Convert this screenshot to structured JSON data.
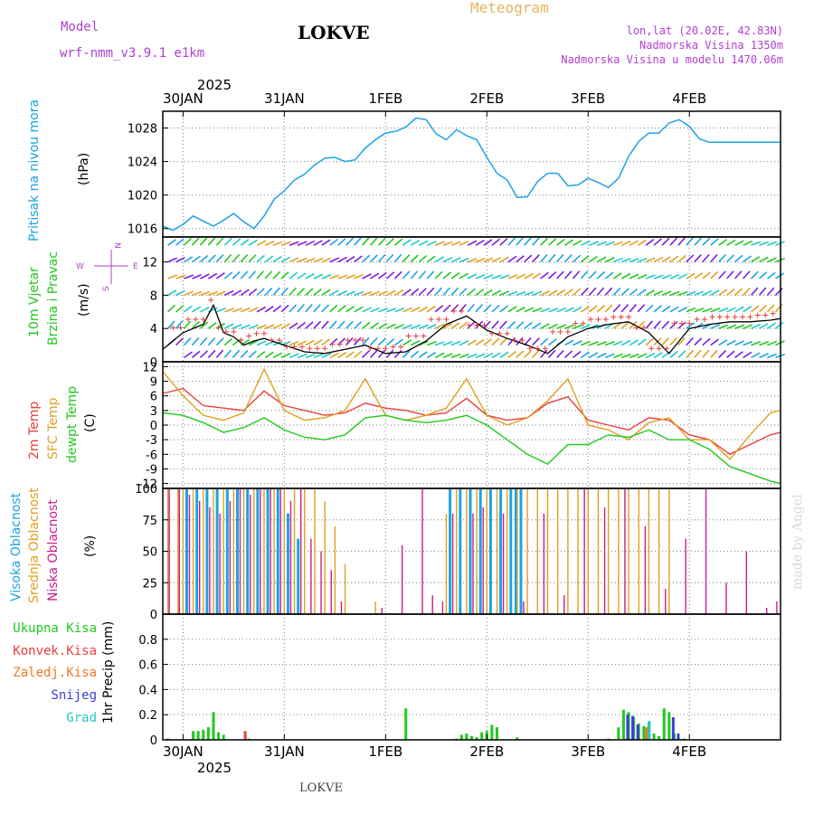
{
  "header": {
    "model_label": "Model",
    "model_name": "wrf-nmm_v3.9.1 e1km",
    "station": "LOKVE",
    "meteogram": "Meteogram",
    "lonlat": "lon,lat (20.02E, 42.83N)",
    "elevation": "Nadmorska Visina 1350m",
    "elevation_model": "Nadmorska Visina u modelu 1470.06m",
    "footer_station": "LOKVE",
    "watermark": "made by Angel",
    "year_top": "2025",
    "year_bottom": "2025"
  },
  "colors": {
    "pressure": "#1ba3e3",
    "temp2m": "#e8403c",
    "sfc": "#e0a020",
    "dewpt": "#22c81e",
    "low_cloud": "#c81e8c",
    "mid_cloud": "#e0a020",
    "high_cloud": "#1ba3e3",
    "total_precip": "#22c81e",
    "conv_precip": "#e8403c",
    "frz_precip": "#f07820",
    "snow": "#3c3cdc",
    "hail": "#20c8c8",
    "wind_legend": "#b040d0"
  },
  "dates": [
    "30JAN",
    "31JAN",
    "1FEB",
    "2FEB",
    "3FEB",
    "4FEB"
  ],
  "panels": {
    "pressure": {
      "label": "Pritisak na nivou mora",
      "unit": "(hPa)",
      "ticks": [
        "1016",
        "1020",
        "1024",
        "1028"
      ]
    },
    "wind": {
      "label1": "10m Vjetar",
      "label2": "Brzina i Pravac",
      "unit": "(m/s)",
      "ticks": [
        "0",
        "4",
        "8",
        "12"
      ],
      "compass": {
        "n": "N",
        "s": "S",
        "e": "E",
        "w": "W"
      }
    },
    "temp": {
      "label_2m": "2m Temp",
      "label_sfc": "SFC Temp",
      "label_dew": "dewpt Temp",
      "unit": "(C)",
      "ticks": [
        "-12",
        "-9",
        "-6",
        "-3",
        "0",
        "3",
        "6",
        "9",
        "12"
      ]
    },
    "cloud": {
      "label_high": "Visoka Oblacnost",
      "label_mid": "Srednja Oblacnost",
      "label_low": "Niska Oblacnost",
      "unit": "(%)",
      "ticks": [
        "0",
        "25",
        "50",
        "75",
        "100"
      ]
    },
    "precip": {
      "label_total": "Ukupna Kisa",
      "label_conv": "Konvek.Kisa",
      "label_frz": "Zaledj.Kisa",
      "label_snow": "Snijeg",
      "label_hail": "Grad",
      "unit": "1hr Precip (mm)",
      "ticks": [
        "0",
        "0.2",
        "0.4",
        "0.6",
        "0.8"
      ]
    }
  },
  "chart_data": [
    {
      "type": "line",
      "panel": "pressure",
      "x_range_hours": [
        -4,
        118
      ],
      "ylim": [
        1015,
        1030
      ],
      "ylabel": "(hPa)",
      "series": [
        {
          "name": "Pritisak na nivou mora",
          "color": "#1ba3e3",
          "x": [
            -4,
            -2,
            0,
            2,
            4,
            6,
            8,
            10,
            12,
            14,
            16,
            18,
            20,
            22,
            24,
            26,
            28,
            30,
            32,
            34,
            36,
            38,
            40,
            42,
            44,
            46,
            48,
            50,
            52,
            54,
            56,
            58,
            60,
            62,
            64,
            66,
            68,
            70,
            72,
            74,
            76,
            78,
            80,
            82,
            84,
            86,
            88,
            90,
            92,
            94,
            96,
            98,
            100,
            102,
            104,
            106,
            108,
            110,
            112,
            114,
            116,
            118
          ],
          "values": [
            1016.3,
            1015.8,
            1016.5,
            1017.5,
            1016.9,
            1016.3,
            1017.0,
            1017.8,
            1016.8,
            1016.0,
            1017.5,
            1019.5,
            1020.5,
            1021.8,
            1022.5,
            1023.6,
            1024.4,
            1024.5,
            1024.0,
            1024.2,
            1025.6,
            1026.6,
            1027.4,
            1027.6,
            1028.1,
            1029.2,
            1029.0,
            1027.3,
            1026.6,
            1027.8,
            1027.1,
            1026.6,
            1024.5,
            1022.6,
            1021.8,
            1019.7,
            1019.8,
            1021.6,
            1022.6,
            1022.6,
            1021.1,
            1021.2,
            1022.0,
            1021.5,
            1020.9,
            1022.0,
            1024.6,
            1026.4,
            1027.4,
            1027.4,
            1028.6,
            1029.0,
            1028.2,
            1026.7,
            1026.3,
            1026.3,
            1026.3,
            1026.3,
            1026.3,
            1026.3,
            1026.3,
            1026.3
          ]
        }
      ]
    },
    {
      "type": "line",
      "panel": "wind",
      "ylim": [
        0,
        15
      ],
      "ylabel": "(m/s)",
      "series": [
        {
          "name": "wind speed",
          "color": "#000000",
          "x": [
            -4,
            0,
            4,
            6,
            8,
            10,
            12,
            14,
            16,
            20,
            24,
            28,
            32,
            36,
            40,
            44,
            48,
            52,
            56,
            60,
            64,
            68,
            72,
            76,
            80,
            84,
            88,
            92,
            96,
            100,
            104,
            108,
            112,
            116,
            118
          ],
          "values": [
            1.5,
            3.5,
            4.5,
            6.8,
            3.5,
            3.0,
            2.0,
            2.5,
            2.8,
            2.0,
            1.2,
            1.0,
            1.5,
            2.0,
            1.0,
            1.2,
            2.5,
            4.5,
            5.5,
            3.8,
            2.8,
            2.0,
            1.0,
            3.0,
            4.0,
            4.5,
            4.8,
            3.5,
            1.0,
            4.0,
            4.5,
            4.8,
            4.8,
            5.0,
            5.2
          ]
        }
      ]
    },
    {
      "type": "line",
      "panel": "temp",
      "ylim": [
        -13,
        13
      ],
      "ylabel": "(C)",
      "series": [
        {
          "name": "2m Temp",
          "color": "#e8403c",
          "x": [
            -4,
            0,
            4,
            8,
            12,
            16,
            20,
            24,
            28,
            32,
            36,
            40,
            44,
            48,
            52,
            56,
            60,
            64,
            68,
            72,
            76,
            80,
            84,
            88,
            92,
            96,
            100,
            104,
            108,
            112,
            116,
            118
          ],
          "values": [
            6.5,
            7.5,
            4.0,
            3.5,
            3.0,
            7.0,
            4.0,
            3.0,
            2.0,
            2.5,
            4.5,
            3.5,
            3.0,
            2.0,
            2.5,
            5.5,
            2.0,
            1.0,
            1.5,
            4.5,
            5.8,
            1.0,
            0.0,
            -1.0,
            1.5,
            1.0,
            -2.0,
            -3.0,
            -6.0,
            -4.0,
            -2.0,
            -1.5
          ]
        },
        {
          "name": "SFC Temp",
          "color": "#e0a020",
          "x": [
            -4,
            0,
            4,
            8,
            12,
            16,
            20,
            24,
            28,
            32,
            36,
            40,
            44,
            48,
            52,
            56,
            60,
            64,
            68,
            72,
            76,
            80,
            84,
            88,
            92,
            96,
            100,
            104,
            108,
            112,
            116,
            118
          ],
          "values": [
            11.0,
            6.0,
            2.0,
            1.0,
            2.5,
            11.5,
            3.0,
            1.0,
            1.5,
            3.0,
            9.5,
            2.0,
            1.0,
            2.0,
            3.5,
            9.5,
            2.0,
            0.0,
            1.5,
            5.0,
            9.5,
            0.0,
            -1.0,
            -3.0,
            0.5,
            1.5,
            -3.0,
            -3.0,
            -7.0,
            -2.0,
            2.5,
            3.0
          ]
        },
        {
          "name": "dewpt Temp",
          "color": "#22c81e",
          "x": [
            -4,
            0,
            4,
            8,
            12,
            16,
            20,
            24,
            28,
            32,
            36,
            40,
            44,
            48,
            52,
            56,
            60,
            64,
            68,
            72,
            76,
            80,
            84,
            88,
            92,
            96,
            100,
            104,
            108,
            112,
            116,
            118
          ],
          "values": [
            2.5,
            2.0,
            0.5,
            -1.5,
            -0.5,
            1.5,
            -1.0,
            -2.5,
            -3.0,
            -2.0,
            1.5,
            2.0,
            1.0,
            0.5,
            1.0,
            2.0,
            0.0,
            -3.0,
            -6.0,
            -8.0,
            -4.0,
            -4.0,
            -2.0,
            -2.5,
            -1.0,
            -3.0,
            -3.0,
            -5.0,
            -8.5,
            -10.0,
            -11.5,
            -12.0
          ]
        }
      ]
    },
    {
      "type": "bar",
      "panel": "cloud",
      "ylim": [
        0,
        100
      ],
      "ylabel": "(%)",
      "series": [
        {
          "name": "Visoka Oblacnost",
          "color": "#1ba3e3",
          "x": [
            1,
            3,
            5,
            7,
            9,
            11,
            13,
            15,
            17,
            19,
            21,
            23,
            53,
            55,
            57,
            59,
            61,
            63,
            65,
            66,
            67
          ],
          "values": [
            100,
            100,
            100,
            100,
            100,
            100,
            100,
            100,
            100,
            100,
            80,
            60,
            100,
            100,
            100,
            100,
            100,
            100,
            100,
            100,
            100
          ]
        },
        {
          "name": "Srednja Oblacnost",
          "color": "#e0a020",
          "x": [
            -3,
            -1,
            0,
            2,
            4,
            6,
            8,
            10,
            12,
            14,
            16,
            18,
            20,
            22,
            24,
            26,
            28,
            30,
            32,
            38,
            52,
            54,
            56,
            58,
            60,
            62,
            64,
            66,
            68,
            70,
            72,
            74,
            76,
            78,
            80,
            82,
            84,
            86,
            88,
            90,
            92,
            94,
            96
          ],
          "values": [
            100,
            100,
            100,
            100,
            100,
            100,
            100,
            100,
            100,
            100,
            100,
            100,
            100,
            100,
            100,
            100,
            90,
            70,
            40,
            10,
            80,
            100,
            100,
            100,
            100,
            100,
            100,
            100,
            100,
            100,
            100,
            100,
            100,
            100,
            100,
            100,
            100,
            100,
            100,
            100,
            100,
            100,
            100
          ]
        },
        {
          "name": "Niska Oblacnost",
          "color": "#c81e8c",
          "x": [
            -3,
            -1,
            1,
            3,
            5,
            7,
            9,
            11,
            13,
            15,
            17,
            19,
            21,
            23,
            25,
            27,
            29,
            31,
            39,
            43,
            47,
            49,
            51,
            53,
            57,
            59,
            63,
            67,
            71,
            75,
            79,
            83,
            87,
            91,
            95,
            99,
            103,
            107,
            111,
            115,
            117
          ],
          "values": [
            100,
            100,
            95,
            90,
            85,
            80,
            90,
            100,
            95,
            100,
            100,
            100,
            90,
            100,
            60,
            50,
            35,
            10,
            5,
            55,
            100,
            15,
            10,
            80,
            80,
            85,
            80,
            10,
            80,
            15,
            100,
            85,
            100,
            70,
            20,
            60,
            100,
            25,
            50,
            5,
            10
          ]
        }
      ]
    },
    {
      "type": "bar",
      "panel": "precip",
      "ylim": [
        0,
        1.0
      ],
      "ylabel": "1hr Precip (mm)",
      "series": [
        {
          "name": "Ukupna Kisa",
          "color": "#22c81e",
          "x": [
            -3,
            2,
            3,
            4,
            5,
            6,
            7,
            8,
            13,
            44,
            54,
            55,
            56,
            57,
            58,
            59,
            60,
            61,
            62,
            66,
            84,
            86,
            87,
            88,
            89,
            90,
            91,
            92,
            93,
            94,
            95,
            96,
            97,
            98,
            99
          ],
          "values": [
            0.01,
            0.07,
            0.07,
            0.08,
            0.1,
            0.22,
            0.06,
            0.04,
            0.01,
            0.25,
            0.01,
            0.04,
            0.05,
            0.03,
            0.02,
            0.06,
            0.07,
            0.12,
            0.1,
            0.02,
            0.01,
            0.1,
            0.24,
            0.22,
            0.18,
            0.13,
            0.11,
            0.14,
            0.05,
            0.03,
            0.25,
            0.22,
            0.05,
            0.01,
            0.01
          ]
        },
        {
          "name": "Konvek.Kisa",
          "color": "#e8403c",
          "x": [
            12
          ],
          "values": [
            0.07
          ]
        },
        {
          "name": "Zaledj.Kisa",
          "color": "#f07820",
          "x": [
            91
          ],
          "values": [
            0.1
          ]
        },
        {
          "name": "Snijeg",
          "color": "#3c3cdc",
          "x": [
            87,
            88,
            89,
            96,
            97
          ],
          "values": [
            0.2,
            0.19,
            0.12,
            0.18,
            0.05
          ]
        },
        {
          "name": "Grad",
          "color": "#20c8c8",
          "x": [
            91
          ],
          "values": [
            0.15
          ]
        }
      ]
    }
  ]
}
